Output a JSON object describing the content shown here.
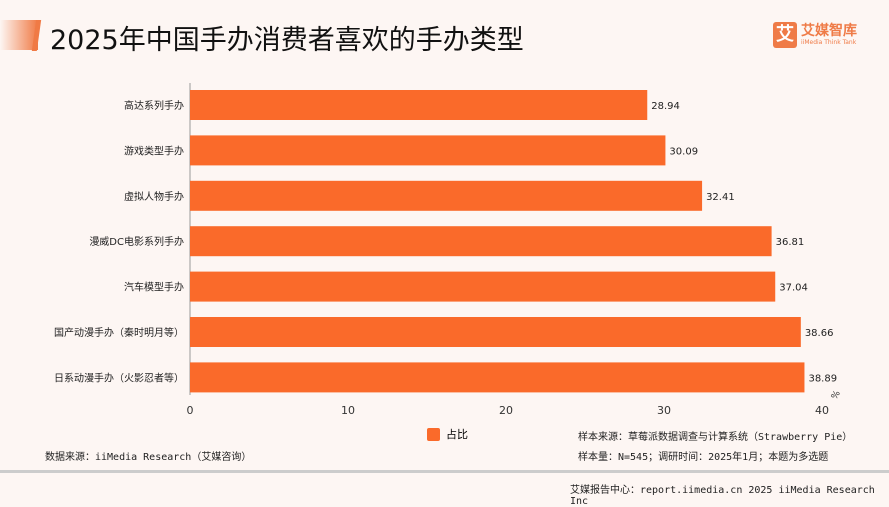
{
  "header": {
    "title": "2025年中国手办消费者喜欢的手办类型"
  },
  "logo": {
    "name": "艾媒智库",
    "sub": "iiMedia Think Tank",
    "glyph": "艾"
  },
  "chart_data": {
    "type": "bar",
    "orientation": "horizontal",
    "categories": [
      "高达系列手办",
      "游戏类型手办",
      "虚拟人物手办",
      "漫威DC电影系列手办",
      "汽车模型手办",
      "国产动漫手办（秦时明月等）",
      "日系动漫手办（火影忍者等）"
    ],
    "series": [
      {
        "name": "占比",
        "values": [
          28.94,
          30.09,
          32.41,
          36.81,
          37.04,
          38.66,
          38.89
        ],
        "color": "#fa6a2a"
      }
    ],
    "xlim": [
      0,
      40
    ],
    "xticks": [
      "0",
      "10",
      "20",
      "30",
      "40"
    ],
    "xunit": "%",
    "legend": "bottom",
    "grid": false
  },
  "footer": {
    "source": "数据来源：iiMedia Research（艾媒咨询）",
    "sample_source": "样本来源：草莓派数据调查与计算系统（Strawberry Pie）",
    "sample_size": "样本量：N=545；调研时间：2025年1月；本题为多选题",
    "report": "艾媒报告中心：report.iimedia.cn   2025 iiMedia Research Inc"
  }
}
